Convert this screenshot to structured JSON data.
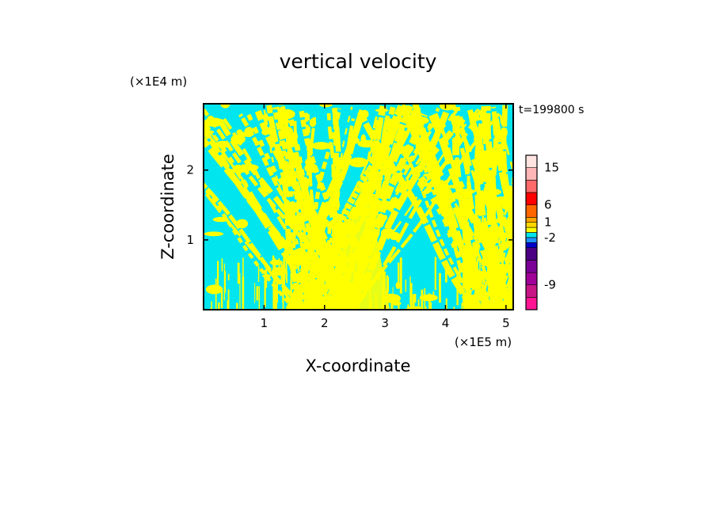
{
  "chart_data": {
    "type": "heatmap",
    "title": "vertical velocity",
    "xlabel": "X-coordinate",
    "ylabel": "Z-coordinate",
    "x_unit_label": "(×1E5 m)",
    "y_unit_label": "(×1E4 m)",
    "time_label": "t=199800 s",
    "xlim": [
      0,
      5.12
    ],
    "ylim": [
      0,
      2.95
    ],
    "x_ticks": [
      1,
      2,
      3,
      4,
      5
    ],
    "y_ticks": [
      1,
      2
    ],
    "field_colors": {
      "positive": "#ffff00",
      "negative": "#00e5ee"
    },
    "colorbar": {
      "tick_labels": [
        "15",
        "6",
        "1",
        "-2",
        "-9"
      ],
      "levels": [
        {
          "color": "#ff1493"
        },
        {
          "color": "#c71585"
        },
        {
          "color": "#a00098"
        },
        {
          "color": "#7a0098"
        },
        {
          "color": "#4b0082"
        },
        {
          "color": "#0000cd"
        },
        {
          "color": "#1e90ff"
        },
        {
          "color": "#00e5ee"
        },
        {
          "color": "#ffff00"
        },
        {
          "color": "#ffd700"
        },
        {
          "color": "#ffa500"
        },
        {
          "color": "#ff6600"
        },
        {
          "color": "#ff0000"
        },
        {
          "color": "#ff6a6a"
        },
        {
          "color": "#ffb6b6"
        },
        {
          "color": "#ffe4e1"
        }
      ]
    }
  }
}
